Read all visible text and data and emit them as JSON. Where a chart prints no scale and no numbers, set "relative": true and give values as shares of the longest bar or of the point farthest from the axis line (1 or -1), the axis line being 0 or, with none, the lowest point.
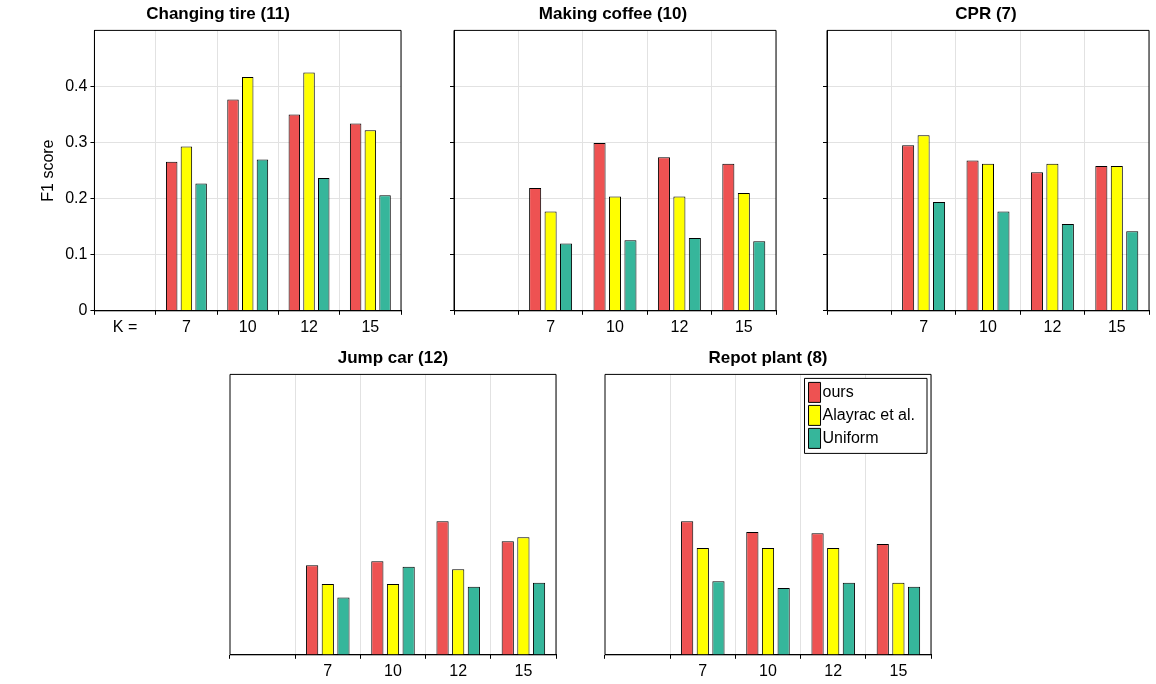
{
  "chart_data": [
    {
      "type": "bar",
      "title": "Changing tire (11)",
      "ylabel": "F1 score",
      "categories": [
        "K =",
        "7",
        "10",
        "12",
        "15"
      ],
      "ylim": [
        0,
        0.5
      ],
      "yticks": [
        0,
        0.1,
        0.2,
        0.3,
        0.4
      ],
      "grid": true,
      "series": [
        {
          "color": "#ee5252",
          "values": [
            null,
            0.266,
            0.377,
            0.35,
            0.334
          ]
        },
        {
          "color": "#ffff00",
          "values": [
            null,
            0.293,
            0.417,
            0.425,
            0.322
          ]
        },
        {
          "color": "#36b69b",
          "values": [
            null,
            0.227,
            0.27,
            0.237,
            0.206
          ]
        }
      ]
    },
    {
      "type": "bar",
      "title": "Making coffee (10)",
      "categories": [
        null,
        "7",
        "10",
        "12",
        "15"
      ],
      "ylim": [
        0,
        0.5
      ],
      "yticks": [
        0,
        0.1,
        0.2,
        0.3,
        0.4
      ],
      "grid": true,
      "tick_labels": "x",
      "series": [
        {
          "color": "#ee5252",
          "values": [
            null,
            0.219,
            0.299,
            0.274,
            0.262
          ]
        },
        {
          "color": "#ffff00",
          "values": [
            null,
            0.177,
            0.204,
            0.204,
            0.21
          ]
        },
        {
          "color": "#36b69b",
          "values": [
            null,
            0.12,
            0.126,
            0.13,
            0.124
          ]
        }
      ]
    },
    {
      "type": "bar",
      "title": "CPR (7)",
      "categories": [
        null,
        "7",
        "10",
        "12",
        "15"
      ],
      "ylim": [
        0,
        0.5
      ],
      "yticks": [
        0,
        0.1,
        0.2,
        0.3,
        0.4
      ],
      "grid": true,
      "tick_labels": "x",
      "series": [
        {
          "color": "#ee5252",
          "values": [
            null,
            0.295,
            0.268,
            0.247,
            0.258
          ]
        },
        {
          "color": "#ffff00",
          "values": [
            null,
            0.313,
            0.262,
            0.262,
            0.258
          ]
        },
        {
          "color": "#36b69b",
          "values": [
            null,
            0.194,
            0.177,
            0.155,
            0.142
          ]
        }
      ]
    },
    {
      "type": "bar",
      "title": "Jump car (12)",
      "categories": [
        null,
        "7",
        "10",
        "12",
        "15"
      ],
      "relative": true,
      "grid": "x",
      "tick_labels": "x",
      "series": [
        {
          "color": "#ee5252",
          "values": [
            null,
            0.67,
            0.7,
            1,
            0.85
          ]
        },
        {
          "color": "#ffff00",
          "values": [
            null,
            0.53,
            0.53,
            0.64,
            0.88
          ]
        },
        {
          "color": "#36b69b",
          "values": [
            null,
            0.43,
            0.66,
            0.51,
            0.54
          ]
        }
      ]
    },
    {
      "type": "bar",
      "title": "Repot plant (8)",
      "categories": [
        null,
        "7",
        "10",
        "12",
        "15"
      ],
      "relative": true,
      "grid": "x",
      "tick_labels": "x",
      "legend": "top right",
      "series": [
        {
          "name": "ours",
          "color": "#ee5252",
          "values": [
            null,
            1,
            0.92,
            0.91,
            0.83
          ]
        },
        {
          "name": "Alayrac et al.",
          "color": "#ffff00",
          "values": [
            null,
            0.8,
            0.8,
            0.8,
            0.54
          ]
        },
        {
          "name": "Uniform",
          "color": "#36b69b",
          "values": [
            null,
            0.55,
            0.5,
            0.54,
            0.51
          ]
        }
      ]
    }
  ]
}
